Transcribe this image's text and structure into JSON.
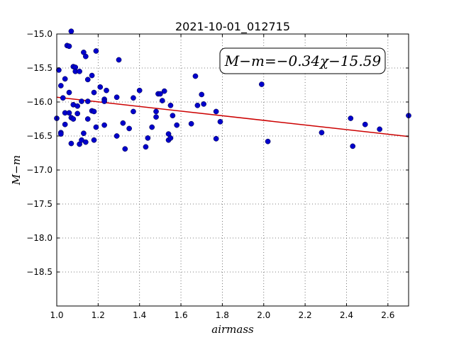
{
  "chart_data": {
    "type": "scatter",
    "title": "2021-10-01_012715",
    "xlabel": "airmass",
    "ylabel": "M−m",
    "xlim": [
      1.0,
      2.7
    ],
    "ylim": [
      -19.0,
      -15.0
    ],
    "y_inverted": true,
    "grid": true,
    "xticks": [
      "1.0",
      "1.2",
      "1.4",
      "1.6",
      "1.8",
      "2.0",
      "2.2",
      "2.4",
      "2.6"
    ],
    "yticks": [
      "−15.0",
      "−15.5",
      "−16.0",
      "−16.5",
      "−17.0",
      "−17.5",
      "−18.0",
      "−18.5"
    ],
    "annotation": "M−m=−0.34χ−15.59",
    "fit": {
      "slope": -0.34,
      "intercept": -15.59,
      "color": "#cc0000"
    },
    "point_color": "#0000cc",
    "points": [
      [
        1.0,
        -16.24
      ],
      [
        1.01,
        -15.53
      ],
      [
        1.02,
        -15.76
      ],
      [
        1.02,
        -16.45
      ],
      [
        1.02,
        -16.47
      ],
      [
        1.03,
        -15.94
      ],
      [
        1.04,
        -16.33
      ],
      [
        1.04,
        -15.66
      ],
      [
        1.04,
        -16.16
      ],
      [
        1.05,
        -15.17
      ],
      [
        1.06,
        -16.16
      ],
      [
        1.06,
        -15.86
      ],
      [
        1.06,
        -15.18
      ],
      [
        1.07,
        -16.61
      ],
      [
        1.07,
        -14.96
      ],
      [
        1.07,
        -16.23
      ],
      [
        1.08,
        -16.25
      ],
      [
        1.08,
        -15.48
      ],
      [
        1.08,
        -16.04
      ],
      [
        1.09,
        -15.49
      ],
      [
        1.09,
        -15.55
      ],
      [
        1.1,
        -16.06
      ],
      [
        1.1,
        -16.17
      ],
      [
        1.11,
        -15.55
      ],
      [
        1.11,
        -16.62
      ],
      [
        1.12,
        -16.56
      ],
      [
        1.12,
        -15.99
      ],
      [
        1.13,
        -15.27
      ],
      [
        1.13,
        -16.46
      ],
      [
        1.14,
        -15.33
      ],
      [
        1.14,
        -16.59
      ],
      [
        1.15,
        -15.99
      ],
      [
        1.15,
        -16.25
      ],
      [
        1.15,
        -15.67
      ],
      [
        1.17,
        -15.61
      ],
      [
        1.17,
        -16.13
      ],
      [
        1.18,
        -15.86
      ],
      [
        1.18,
        -16.14
      ],
      [
        1.18,
        -16.56
      ],
      [
        1.19,
        -15.25
      ],
      [
        1.19,
        -16.37
      ],
      [
        1.21,
        -15.78
      ],
      [
        1.23,
        -15.96
      ],
      [
        1.23,
        -15.99
      ],
      [
        1.23,
        -16.34
      ],
      [
        1.24,
        -15.83
      ],
      [
        1.29,
        -15.93
      ],
      [
        1.29,
        -16.5
      ],
      [
        1.3,
        -15.38
      ],
      [
        1.32,
        -16.31
      ],
      [
        1.33,
        -16.69
      ],
      [
        1.35,
        -16.39
      ],
      [
        1.37,
        -15.94
      ],
      [
        1.37,
        -16.14
      ],
      [
        1.4,
        -15.83
      ],
      [
        1.43,
        -16.66
      ],
      [
        1.44,
        -16.53
      ],
      [
        1.46,
        -16.37
      ],
      [
        1.48,
        -16.14
      ],
      [
        1.48,
        -16.22
      ],
      [
        1.49,
        -15.88
      ],
      [
        1.5,
        -15.88
      ],
      [
        1.51,
        -15.98
      ],
      [
        1.52,
        -15.84
      ],
      [
        1.54,
        -16.47
      ],
      [
        1.54,
        -16.56
      ],
      [
        1.55,
        -16.53
      ],
      [
        1.55,
        -16.05
      ],
      [
        1.56,
        -16.2
      ],
      [
        1.58,
        -16.34
      ],
      [
        1.65,
        -16.32
      ],
      [
        1.67,
        -15.62
      ],
      [
        1.68,
        -16.05
      ],
      [
        1.7,
        -15.89
      ],
      [
        1.71,
        -16.03
      ],
      [
        1.77,
        -16.14
      ],
      [
        1.77,
        -16.54
      ],
      [
        1.79,
        -16.29
      ],
      [
        1.99,
        -15.74
      ],
      [
        2.02,
        -16.58
      ],
      [
        2.28,
        -16.45
      ],
      [
        2.42,
        -16.24
      ],
      [
        2.43,
        -16.65
      ],
      [
        2.49,
        -16.33
      ],
      [
        2.56,
        -16.4
      ],
      [
        2.7,
        -16.2
      ]
    ]
  }
}
